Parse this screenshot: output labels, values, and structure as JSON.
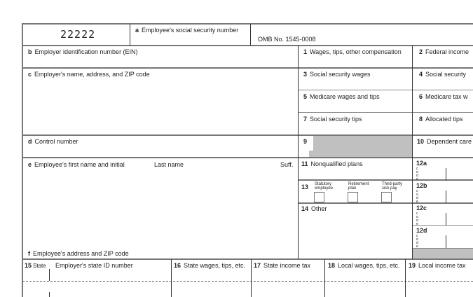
{
  "form_code": "22222",
  "omb": "OMB No. 1545-0008",
  "boxes": {
    "a": {
      "letter": "a",
      "label": "Employee's social security number"
    },
    "b": {
      "letter": "b",
      "label": "Employer identification number (EIN)"
    },
    "c": {
      "letter": "c",
      "label": "Employer's name, address, and ZIP code"
    },
    "d": {
      "letter": "d",
      "label": "Control number"
    },
    "e": {
      "letter": "e",
      "label": "Employee's first name and initial",
      "last": "Last name",
      "suff": "Suff."
    },
    "f": {
      "letter": "f",
      "label": "Employee's address and ZIP code"
    },
    "b1": {
      "num": "1",
      "label": "Wages, tips, other compensation"
    },
    "b2": {
      "num": "2",
      "label": "Federal income"
    },
    "b3": {
      "num": "3",
      "label": "Social security wages"
    },
    "b4": {
      "num": "4",
      "label": "Social security"
    },
    "b5": {
      "num": "5",
      "label": "Medicare wages and tips"
    },
    "b6": {
      "num": "6",
      "label": "Medicare tax w"
    },
    "b7": {
      "num": "7",
      "label": "Social security tips"
    },
    "b8": {
      "num": "8",
      "label": "Allocated tips"
    },
    "b9": {
      "num": "9"
    },
    "b10": {
      "num": "10",
      "label": "Dependent care"
    },
    "b11": {
      "num": "11",
      "label": "Nonqualified plans"
    },
    "b13": {
      "num": "13",
      "statutory": "Statutory employee",
      "retirement": "Retirement plan",
      "thirdparty": "Third-party sick pay"
    },
    "b14": {
      "num": "14",
      "label": "Other"
    },
    "b12a": {
      "num": "12a"
    },
    "b12b": {
      "num": "12b"
    },
    "b12c": {
      "num": "12c"
    },
    "b12d": {
      "num": "12d"
    },
    "code_label": "Code",
    "b15": {
      "num": "15",
      "state": "State",
      "label": "Employer's state ID number"
    },
    "b16": {
      "num": "16",
      "label": "State wages, tips, etc."
    },
    "b17": {
      "num": "17",
      "label": "State income tax"
    },
    "b18": {
      "num": "18",
      "label": "Local wages, tips, etc."
    },
    "b19": {
      "num": "19",
      "label": "Local income tax"
    }
  },
  "colors": {
    "shade": "#c0c0c0",
    "border": "#777777"
  }
}
